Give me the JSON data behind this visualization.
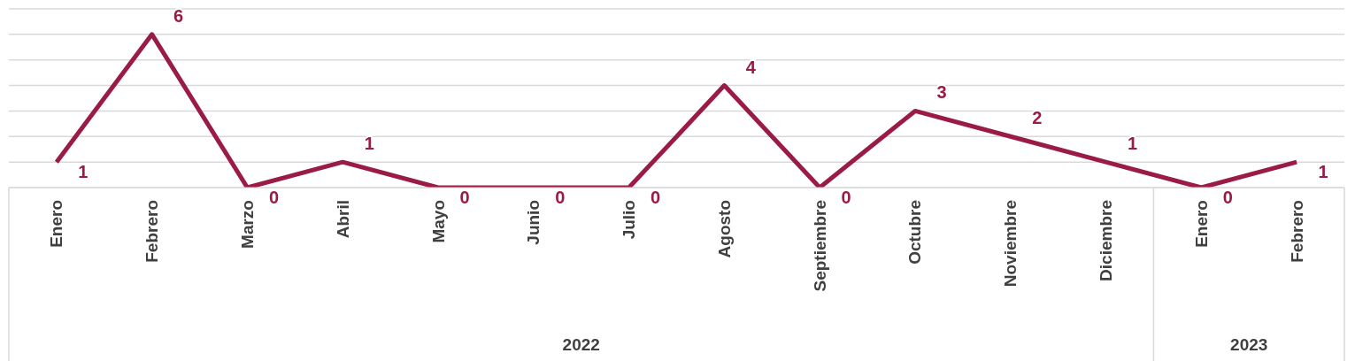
{
  "chart_data": {
    "type": "line",
    "categories": [
      "Enero",
      "Febrero",
      "Marzo",
      "Abril",
      "Mayo",
      "Junio",
      "Julio",
      "Agosto",
      "Septiembre",
      "Octubre",
      "Noviembre",
      "Diciembre",
      "Enero",
      "Febrero"
    ],
    "series": [
      {
        "color": "#9b1b48",
        "values": [
          1,
          6,
          0,
          1,
          0,
          0,
          0,
          4,
          0,
          3,
          2,
          1,
          0,
          1
        ]
      }
    ],
    "ylim": [
      0,
      7
    ],
    "yticks": [
      0,
      1,
      2,
      3,
      4,
      5,
      6,
      7
    ],
    "grid": "y",
    "tick_labels": "x",
    "data_labels": true,
    "marker": "none",
    "line_style": "solid",
    "annotations": [
      "2022",
      "2023"
    ]
  }
}
